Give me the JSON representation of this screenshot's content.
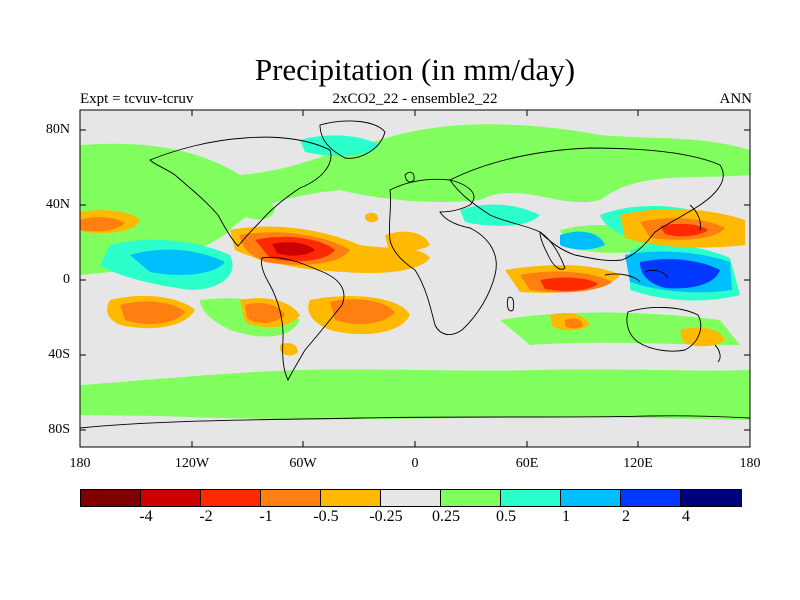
{
  "title": "Precipitation (in mm/day)",
  "header": {
    "left": "Expt = tcvuv-tcruv",
    "center": "2xCO2_22 - ensemble2_22",
    "right": "ANN"
  },
  "chart_data": {
    "type": "map",
    "variable": "Precipitation difference (mm/day), annual mean",
    "x_axis": {
      "range": [
        -180,
        180
      ],
      "ticks": [
        "180",
        "120W",
        "60W",
        "0",
        "60E",
        "120E",
        "180"
      ]
    },
    "y_axis": {
      "range": [
        -90,
        90
      ],
      "ticks": [
        "80N",
        "40N",
        "0",
        "40S",
        "80S"
      ]
    },
    "legend": {
      "labels": [
        "-4",
        "-2",
        "-1",
        "-0.5",
        "-0.25",
        "0.25",
        "0.5",
        "1",
        "2",
        "4"
      ],
      "colors": [
        "#7f0000",
        "#cc0000",
        "#ff2a00",
        "#ff7f11",
        "#ffba00",
        "#e6e6e6",
        "#80ff5f",
        "#2bffcc",
        "#00bfff",
        "#0038ff",
        "#00007f"
      ]
    },
    "regions": [
      {
        "level": "-1 to -2",
        "area": "northern South America / tropical Atlantic (40-80W, 0-20N)"
      },
      {
        "level": "-1 to -2",
        "area": "tropical Indian Ocean (60-100E, 0-5S)"
      },
      {
        "level": "-0.5 to -1",
        "area": "subtropical South Pacific (120-160W, 20-30S)"
      },
      {
        "level": "-0.5 to -1",
        "area": "southern South America / South Atlantic"
      },
      {
        "level": "-0.5 to -1",
        "area": "northwest Pacific (130-160E, 20-30N)"
      },
      {
        "level": "1 to 4",
        "area": "Maritime Continent / western Pacific (120-160E, 0-10N)"
      },
      {
        "level": "0.5 to 2",
        "area": "eastern tropical Pacific (80-140W, 0-15N)"
      },
      {
        "level": "0.25 to 0.5",
        "area": "high latitudes and Southern Ocean storm track"
      }
    ]
  }
}
